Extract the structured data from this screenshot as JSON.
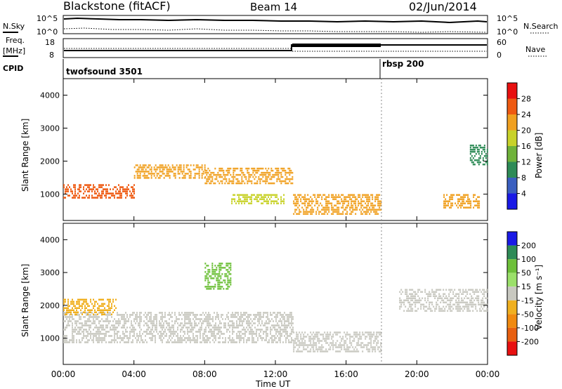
{
  "header": {
    "station": "Blackstone (fitACF)",
    "beam": "Beam 14",
    "date": "02/Jun/2014"
  },
  "strip_labels": {
    "nsky": "N.Sky",
    "nsearch": "N.Search",
    "freq_line1": "Freq.",
    "freq_line2": "[MHz]",
    "nave": "Nave",
    "cpid": "CPID",
    "nsky_tick_top": "10^5",
    "nsky_tick_bottom": "10^0",
    "nsearch_tick_top": "10^5",
    "nsearch_tick_bottom": "10^0",
    "freq_tick_top": "18",
    "freq_tick_bottom": "8",
    "nave_tick_top": "60",
    "nave_tick_bottom": "0"
  },
  "cpid_segments": [
    {
      "label": "twofsound 3501",
      "start_hour": 0
    },
    {
      "label": "rbsp 200",
      "start_hour": 18
    }
  ],
  "chart_data": [
    {
      "type": "heatmap",
      "panel": "power",
      "ylabel": "Slant Range [km]",
      "xlabel": "Time UT",
      "xlim": [
        0,
        24
      ],
      "ylim": [
        200,
        4500
      ],
      "x_ticks": [
        "00:00",
        "04:00",
        "08:00",
        "12:00",
        "16:00",
        "20:00",
        "00:00"
      ],
      "y_ticks": [
        1000,
        2000,
        3000,
        4000
      ],
      "colorbar": {
        "label": "Power [dB]",
        "ticks": [
          4,
          8,
          12,
          16,
          20,
          24,
          28
        ],
        "range": [
          0,
          32
        ],
        "colors": [
          "#1a1ae6",
          "#3a5fc0",
          "#2e8b57",
          "#6fb23a",
          "#c8d22a",
          "#f0a020",
          "#ee5a12",
          "#e81010"
        ]
      },
      "echo_regions": [
        {
          "x": [
            0,
            4
          ],
          "range_km": [
            900,
            1300
          ],
          "power_db": 26
        },
        {
          "x": [
            4,
            8
          ],
          "range_km": [
            1500,
            1900
          ],
          "power_db": 22
        },
        {
          "x": [
            8,
            13
          ],
          "range_km": [
            1300,
            1800
          ],
          "power_db": 22
        },
        {
          "x": [
            9.5,
            12.5
          ],
          "range_km": [
            700,
            1000
          ],
          "power_db": 16
        },
        {
          "x": [
            13,
            18
          ],
          "range_km": [
            400,
            1000
          ],
          "power_db": 20
        },
        {
          "x": [
            21.5,
            23.5
          ],
          "range_km": [
            600,
            1000
          ],
          "power_db": 22
        },
        {
          "x": [
            23,
            24
          ],
          "range_km": [
            1900,
            2500
          ],
          "power_db": 10
        }
      ]
    },
    {
      "type": "heatmap",
      "panel": "velocity",
      "ylabel": "Slant Range [km]",
      "xlabel": "Time UT",
      "xlim": [
        0,
        24
      ],
      "ylim": [
        200,
        4500
      ],
      "x_ticks": [
        "00:00",
        "04:00",
        "08:00",
        "12:00",
        "16:00",
        "20:00",
        "00:00"
      ],
      "y_ticks": [
        1000,
        2000,
        3000,
        4000
      ],
      "colorbar": {
        "label": "Velocity [m s⁻¹]",
        "ticks": [
          200,
          100,
          50,
          15,
          -15,
          -50,
          -100,
          -200
        ],
        "colors": [
          "#1a1ae6",
          "#2e8b57",
          "#6ec03a",
          "#9be06a",
          "#c8c8c0",
          "#f0b020",
          "#f08a10",
          "#e86010",
          "#e81010"
        ]
      },
      "echo_regions": [
        {
          "x": [
            0,
            13
          ],
          "range_km": [
            900,
            1800
          ],
          "velocity": -10
        },
        {
          "x": [
            0,
            3
          ],
          "range_km": [
            1700,
            2200
          ],
          "velocity": -40
        },
        {
          "x": [
            8,
            9.5
          ],
          "range_km": [
            2500,
            3300
          ],
          "velocity": 60
        },
        {
          "x": [
            13,
            18
          ],
          "range_km": [
            600,
            1200
          ],
          "velocity": -10
        },
        {
          "x": [
            19,
            24
          ],
          "range_km": [
            1800,
            2500
          ],
          "velocity": -10
        }
      ]
    }
  ]
}
